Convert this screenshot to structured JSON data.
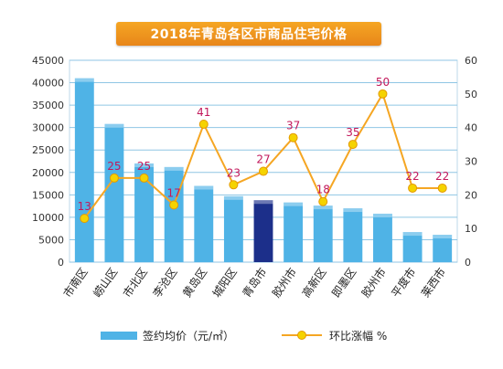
{
  "chart_data": {
    "type": "bar+line",
    "title": "2018年青岛各区市商品住宅价格",
    "categories": [
      "市南区",
      "崂山区",
      "市北区",
      "李沧区",
      "黄岛区",
      "城阳区",
      "青岛市",
      "胶州市",
      "高新区",
      "即墨区",
      "胶州市",
      "平度市",
      "莱西市"
    ],
    "series": [
      {
        "name": "签约均价（元/㎡）",
        "type": "bar",
        "axis": "left",
        "values": [
          41000,
          30800,
          22000,
          21200,
          17000,
          14700,
          13800,
          13300,
          12600,
          12000,
          10800,
          6700,
          6100
        ],
        "color": "#4fb3e6",
        "highlight_index": 6,
        "highlight_color": "#1c2f8a"
      },
      {
        "name": "环比涨幅 %",
        "type": "line",
        "axis": "right",
        "values": [
          13,
          25,
          25,
          17,
          41,
          23,
          27,
          37,
          18,
          35,
          50,
          22,
          22
        ],
        "color": "#f5a623",
        "marker_color": "#f5d300"
      }
    ],
    "data_labels": [
      "13",
      "25",
      "25",
      "17",
      "41",
      "23",
      "27",
      "37",
      "18",
      "35",
      "50",
      "22",
      "22"
    ],
    "left_axis": {
      "min": 0,
      "max": 45000,
      "ticks": [
        "0",
        "5000",
        "10000",
        "15000",
        "20000",
        "25000",
        "30000",
        "35000",
        "40000",
        "45000"
      ]
    },
    "right_axis": {
      "min": 0,
      "max": 60,
      "ticks": [
        "0",
        "10",
        "20",
        "30",
        "40",
        "50",
        "60"
      ]
    },
    "legend": [
      "签约均价（元/㎡）",
      "环比涨幅 %"
    ],
    "legend_position": "bottom",
    "grid": true
  }
}
